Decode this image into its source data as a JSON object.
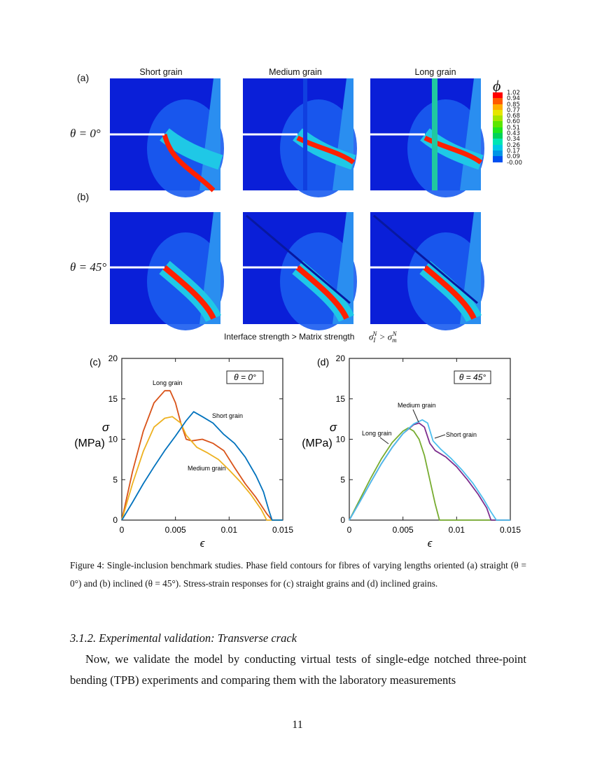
{
  "figure": {
    "row_a_label": "(a)",
    "row_b_label": "(b)",
    "column_titles": [
      "Short grain",
      "Medium grain",
      "Long grain"
    ],
    "row_a_angle": "θ = 0°",
    "row_b_angle": "θ = 45°",
    "colorbar": {
      "symbol": "ϕ",
      "labels": [
        "1.02",
        "0.94",
        "0.85",
        "0.77",
        "0.68",
        "0.60",
        "0.51",
        "0.43",
        "0.34",
        "0.26",
        "0.17",
        "0.09",
        "-0.00"
      ],
      "colors": [
        "#ff0000",
        "#ff5a00",
        "#ffae00",
        "#e6e600",
        "#a6e600",
        "#5ce600",
        "#1ee61e",
        "#00d25a",
        "#00e6b4",
        "#00c8e6",
        "#0096e6",
        "#0050f0",
        "#0000e6"
      ]
    },
    "interface_note": "Interface strength > Matrix strength",
    "interface_formula": "σ_I^N > σ_m^N"
  },
  "chart_data": [
    {
      "panel": "(c)",
      "type": "line",
      "xlabel": "ϵ",
      "ylabel": "σ (MPa)",
      "annotation": "θ = 0°",
      "xlim": [
        0,
        0.015
      ],
      "ylim": [
        0,
        20
      ],
      "xticks": [
        "0",
        "0.005",
        "0.01",
        "0.015"
      ],
      "yticks": [
        "0",
        "5",
        "10",
        "15",
        "20"
      ],
      "series": [
        {
          "name": "Long grain",
          "color": "#d95319",
          "x": [
            0,
            0.001,
            0.002,
            0.003,
            0.004,
            0.0045,
            0.005,
            0.0055,
            0.006,
            0.0065,
            0.0075,
            0.0085,
            0.0095,
            0.0105,
            0.0115,
            0.0125,
            0.0135,
            0.014,
            0.015
          ],
          "y": [
            0,
            6,
            11,
            14.5,
            16,
            16,
            14.5,
            12,
            10,
            9.8,
            10,
            9.5,
            8.6,
            6.5,
            4.5,
            2.8,
            0.8,
            0,
            0
          ]
        },
        {
          "name": "Medium grain",
          "color": "#edb120",
          "x": [
            0,
            0.001,
            0.002,
            0.003,
            0.004,
            0.0047,
            0.0055,
            0.006,
            0.007,
            0.008,
            0.009,
            0.01,
            0.011,
            0.012,
            0.013,
            0.0135,
            0.015
          ],
          "y": [
            0,
            4.5,
            8.5,
            11.5,
            12.6,
            12.8,
            12,
            10.5,
            9,
            8.3,
            7.5,
            6.2,
            4.8,
            3.2,
            1.3,
            0,
            0
          ]
        },
        {
          "name": "Short grain",
          "color": "#0072bd",
          "x": [
            0,
            0.001,
            0.002,
            0.003,
            0.004,
            0.005,
            0.006,
            0.0067,
            0.0075,
            0.0085,
            0.0095,
            0.0105,
            0.0115,
            0.0125,
            0.0132,
            0.0137,
            0.014,
            0.015
          ],
          "y": [
            0,
            2.2,
            4.5,
            6.6,
            8.6,
            10.4,
            12.3,
            13.4,
            12.8,
            12,
            10.6,
            9.5,
            7.8,
            5.5,
            3.5,
            1.2,
            0,
            0
          ]
        }
      ]
    },
    {
      "panel": "(d)",
      "type": "line",
      "xlabel": "ϵ",
      "ylabel": "σ (MPa)",
      "annotation": "θ = 45°",
      "xlim": [
        0,
        0.015
      ],
      "ylim": [
        0,
        20
      ],
      "xticks": [
        "0",
        "0.005",
        "0.01",
        "0.015"
      ],
      "yticks": [
        "0",
        "5",
        "10",
        "15",
        "20"
      ],
      "series": [
        {
          "name": "Long grain",
          "color": "#77ac30",
          "x": [
            0,
            0.001,
            0.002,
            0.003,
            0.004,
            0.005,
            0.0055,
            0.006,
            0.0065,
            0.007,
            0.0075,
            0.008,
            0.0084,
            0.015
          ],
          "y": [
            0,
            2.6,
            5.2,
            7.6,
            9.6,
            11,
            11.4,
            11,
            10,
            8,
            5,
            2,
            0,
            0
          ]
        },
        {
          "name": "Medium grain",
          "color": "#7e2f8e",
          "x": [
            0,
            0.001,
            0.002,
            0.003,
            0.004,
            0.005,
            0.006,
            0.0065,
            0.007,
            0.0075,
            0.008,
            0.009,
            0.01,
            0.011,
            0.012,
            0.0128,
            0.0132,
            0.015
          ],
          "y": [
            0,
            2.3,
            4.7,
            7,
            9,
            10.7,
            11.8,
            12,
            11.5,
            9.5,
            8.6,
            7.8,
            6.6,
            5,
            3.2,
            1.5,
            0,
            0
          ]
        },
        {
          "name": "Short grain",
          "color": "#4dbeee",
          "x": [
            0,
            0.001,
            0.002,
            0.003,
            0.004,
            0.005,
            0.006,
            0.0068,
            0.0073,
            0.0078,
            0.0085,
            0.0095,
            0.0105,
            0.0115,
            0.0125,
            0.0132,
            0.0137,
            0.015
          ],
          "y": [
            0,
            2.3,
            4.7,
            7,
            9,
            10.7,
            11.9,
            12.4,
            12,
            9.8,
            8.8,
            7.6,
            6.2,
            4.6,
            2.6,
            1,
            0,
            0
          ]
        }
      ]
    }
  ],
  "caption": "Figure 4: Single-inclusion benchmark studies. Phase field contours for fibres of varying lengths oriented (a) straight (θ = 0°) and (b) inclined (θ = 45°). Stress-strain responses for (c) straight grains and (d) inclined grains.",
  "section_heading": "3.1.2. Experimental validation: Transverse crack",
  "paragraph": "Now, we validate the model by conducting virtual tests of single-edge notched three-point bending (TPB) experiments and comparing them with the laboratory measurements",
  "page_number": "11"
}
